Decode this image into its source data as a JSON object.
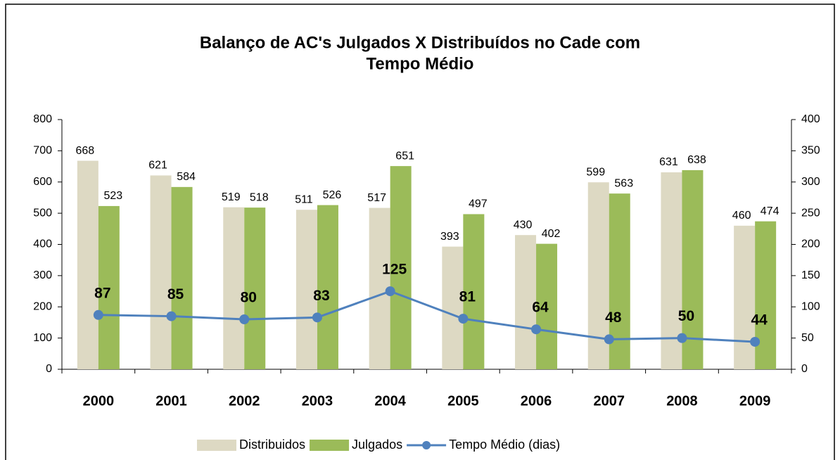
{
  "chart_data": {
    "type": "bar",
    "title": [
      "Balanço de AC's Julgados X Distribuídos no Cade com",
      "Tempo Médio"
    ],
    "categories": [
      "2000",
      "2001",
      "2002",
      "2003",
      "2004",
      "2005",
      "2006",
      "2007",
      "2008",
      "2009"
    ],
    "series": [
      {
        "name": "Distribuidos",
        "type": "bar",
        "color": "#ddd9c3",
        "values": [
          668,
          621,
          519,
          511,
          517,
          393,
          430,
          599,
          631,
          460
        ]
      },
      {
        "name": "Julgados",
        "type": "bar",
        "color": "#9bbb59",
        "values": [
          523,
          584,
          518,
          526,
          651,
          497,
          402,
          563,
          638,
          474
        ]
      },
      {
        "name": "Tempo Médio (dias)",
        "type": "line",
        "axis": "y2",
        "color": "#4f81bd",
        "values": [
          87,
          85,
          80,
          83,
          125,
          81,
          64,
          48,
          50,
          44
        ]
      }
    ],
    "ylim": [
      0,
      800
    ],
    "yticks": [
      0,
      100,
      200,
      300,
      400,
      500,
      600,
      700,
      800
    ],
    "y2lim": [
      0,
      400
    ],
    "y2ticks": [
      0,
      50,
      100,
      150,
      200,
      250,
      300,
      350,
      400
    ],
    "grid": false,
    "legend": "bottom"
  }
}
